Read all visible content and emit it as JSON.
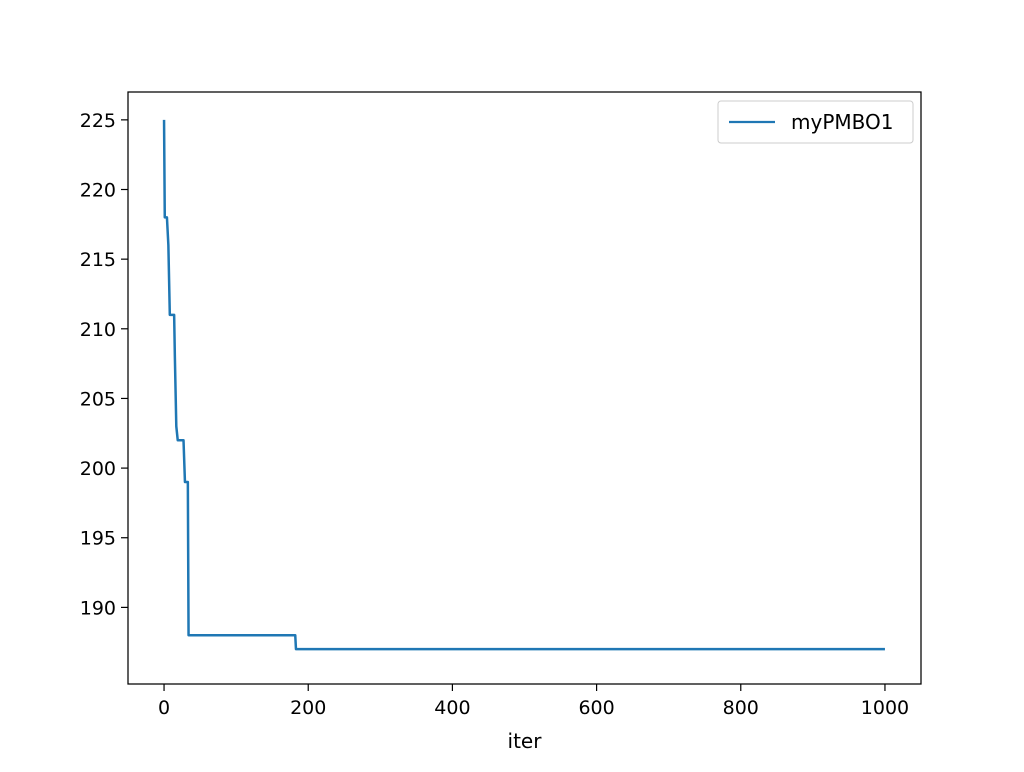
{
  "chart_data": {
    "type": "line",
    "title": "",
    "xlabel": "iter",
    "ylabel": "",
    "xlim": [
      -50,
      1050
    ],
    "ylim": [
      184.5,
      227
    ],
    "xticks": [
      0,
      200,
      400,
      600,
      800,
      1000
    ],
    "xtick_labels": [
      "0",
      "200",
      "400",
      "600",
      "800",
      "1000"
    ],
    "yticks": [
      190,
      195,
      200,
      205,
      210,
      215,
      220,
      225
    ],
    "ytick_labels": [
      "190",
      "195",
      "200",
      "205",
      "210",
      "215",
      "220",
      "225"
    ],
    "grid": false,
    "legend": {
      "position": "top-right",
      "entries": [
        "myPMBO1"
      ]
    },
    "series": [
      {
        "name": "myPMBO1",
        "color": "#1f77b4",
        "points": [
          [
            0,
            225
          ],
          [
            1,
            218
          ],
          [
            4,
            218
          ],
          [
            6,
            216
          ],
          [
            8,
            211
          ],
          [
            14,
            211
          ],
          [
            15,
            208
          ],
          [
            17,
            203
          ],
          [
            19,
            202
          ],
          [
            27,
            202
          ],
          [
            29,
            199
          ],
          [
            33,
            199
          ],
          [
            34,
            188
          ],
          [
            182,
            188
          ],
          [
            183,
            187
          ],
          [
            1000,
            187
          ]
        ]
      }
    ]
  }
}
